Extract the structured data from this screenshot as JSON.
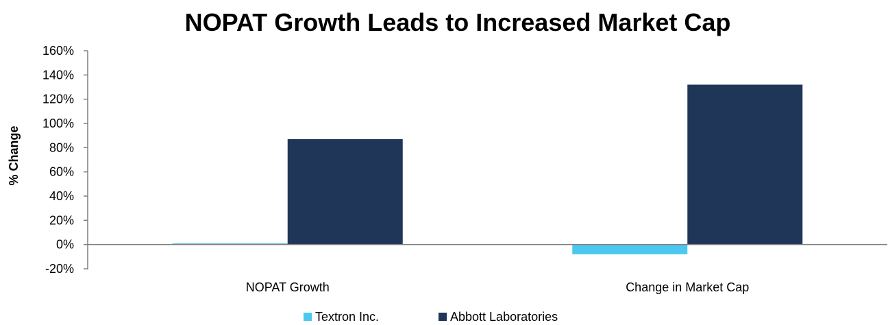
{
  "chart_data": {
    "type": "bar",
    "title": "NOPAT Growth Leads to Increased Market Cap",
    "xlabel": "",
    "ylabel": "% Change",
    "categories": [
      "NOPAT Growth",
      "Change in Market Cap"
    ],
    "series": [
      {
        "name": "Textron Inc.",
        "values": [
          1,
          -8
        ],
        "color": "#4BC8F0"
      },
      {
        "name": "Abbott Laboratories",
        "values": [
          87,
          132
        ],
        "color": "#1F3658"
      }
    ],
    "ylim": [
      -20,
      160
    ],
    "yticks": [
      -20,
      0,
      20,
      40,
      60,
      80,
      100,
      120,
      140,
      160
    ],
    "ytick_labels": [
      "-20%",
      "0%",
      "20%",
      "40%",
      "60%",
      "80%",
      "100%",
      "120%",
      "140%",
      "160%"
    ],
    "grid": false,
    "legend_position": "bottom"
  }
}
